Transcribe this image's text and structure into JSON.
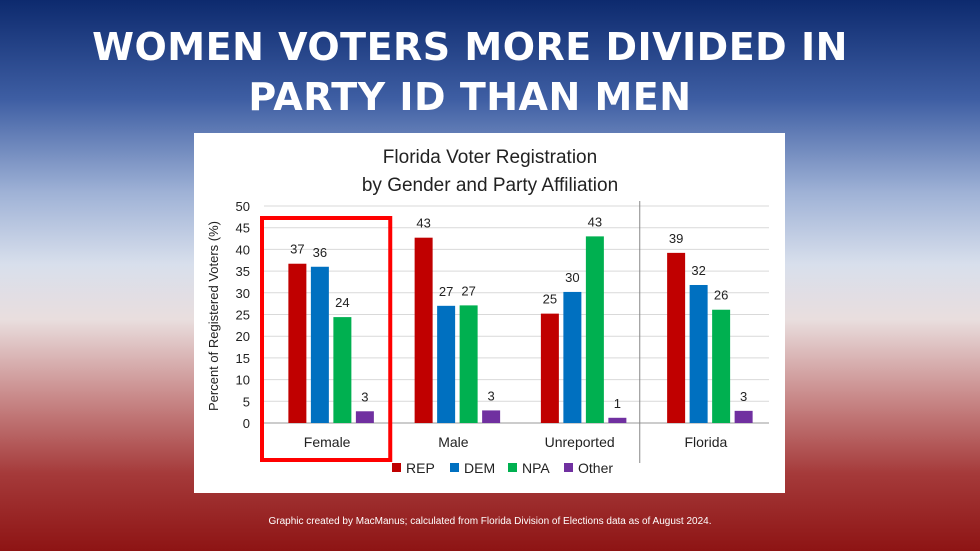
{
  "headline": {
    "line1": "WOMEN VOTERS MORE DIVIDED IN",
    "line2": "PARTY ID THAN MEN"
  },
  "footer": {
    "credit": "Graphic created by MacManus; calculated from Florida Division of Elections data as of August 2024."
  },
  "chart_data": {
    "type": "bar",
    "title": [
      "Florida Voter Registration",
      "by Gender and Party Affiliation"
    ],
    "xlabel": "",
    "ylabel": "Percent of Registered Voters (%)",
    "ylim": [
      0,
      50
    ],
    "yticks": [
      0,
      5,
      10,
      15,
      20,
      25,
      30,
      35,
      40,
      45,
      50
    ],
    "grid": true,
    "legend_position": "bottom",
    "categories": [
      "Female",
      "Male",
      "Unreported",
      "Florida"
    ],
    "highlighted_category": "Female",
    "series": [
      {
        "name": "REP",
        "color": "#c00000",
        "values": [
          37,
          43,
          25,
          39
        ],
        "plot_values": [
          36.7,
          42.7,
          25.2,
          39.2
        ]
      },
      {
        "name": "DEM",
        "color": "#0070c0",
        "values": [
          36,
          27,
          30,
          32
        ],
        "plot_values": [
          36.0,
          27.0,
          30.2,
          31.8
        ]
      },
      {
        "name": "NPA",
        "color": "#00b050",
        "values": [
          24,
          27,
          43,
          26
        ],
        "plot_values": [
          24.4,
          27.1,
          43.0,
          26.1
        ]
      },
      {
        "name": "Other",
        "color": "#7030a0",
        "values": [
          3,
          3,
          1,
          3
        ],
        "plot_values": [
          2.7,
          2.9,
          1.2,
          2.8
        ]
      }
    ]
  }
}
